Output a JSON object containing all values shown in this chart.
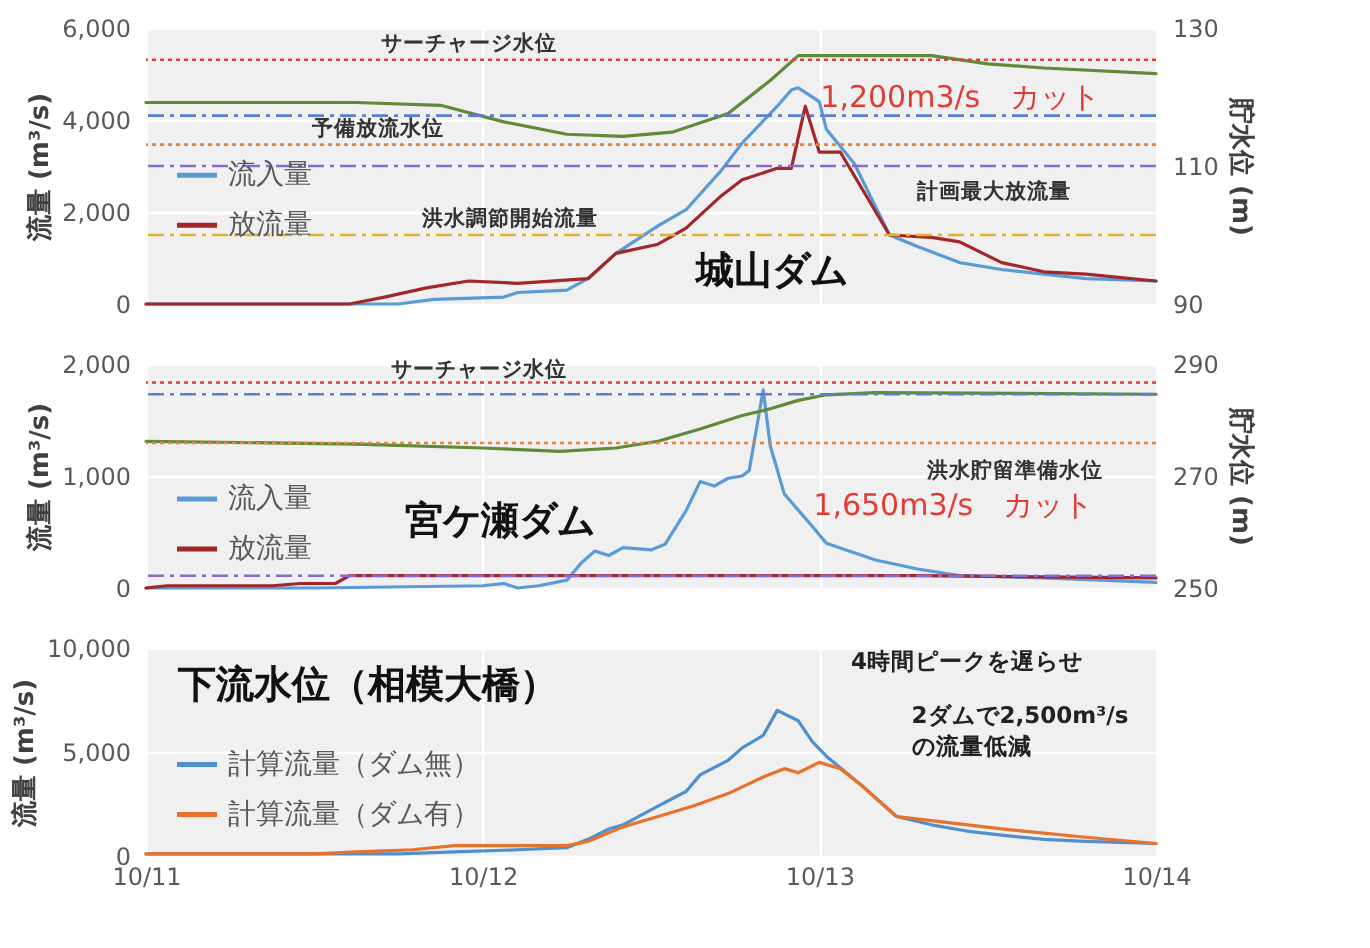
{
  "chart_data": [
    {
      "type": "line",
      "title": "城山ダム",
      "ylabel": "流量 (m³/s)",
      "y2label": "貯水位 (m)",
      "xlim": [
        "--10-11",
        "--10-14"
      ],
      "xticks": [
        {
          "value": "--10-11",
          "label": "10/11"
        },
        {
          "value": "--10-12",
          "label": "10/12"
        },
        {
          "value": "--10-13",
          "label": "10/13"
        },
        {
          "value": "--10-14",
          "label": "10/14"
        }
      ],
      "ylim": [
        0,
        6000
      ],
      "yticks": [
        {
          "value": 0,
          "label": "0"
        },
        {
          "value": 2000,
          "label": "2,000"
        },
        {
          "value": 4000,
          "label": "4,000"
        },
        {
          "value": 6000,
          "label": "6,000"
        }
      ],
      "y2lim": [
        90,
        130
      ],
      "y2ticks": [
        90,
        110,
        130
      ],
      "grid": true,
      "legend": "left",
      "tick_labels": "y",
      "series": [
        {
          "name": "流入量",
          "color": "#5b9bd5",
          "x": [
            "--10-11T00:00",
            "--10-11T18:00",
            "--10-11T20:30",
            "--10-12T01:30",
            "--10-12T02:30",
            "--10-12T06:00",
            "--10-12T07:30",
            "--10-12T09:30",
            "--10-12T12:30",
            "--10-12T14:30",
            "--10-12T17:00",
            "--10-12T18:30",
            "--10-12T21:00",
            "--10-12T22:00",
            "--10-12T22:30",
            "--10-13T00:00",
            "--10-13T00:30",
            "--10-13T02:30",
            "--10-13T05:00",
            "--10-13T07:00",
            "--10-13T10:00",
            "--10-13T13:00",
            "--10-13T16:00",
            "--10-13T19:00",
            "--10-14T00:00"
          ],
          "values": [
            0,
            0,
            100,
            150,
            250,
            300,
            550,
            1100,
            1700,
            2050,
            2900,
            3500,
            4300,
            4650,
            4700,
            4400,
            3800,
            3050,
            1500,
            1250,
            900,
            750,
            650,
            550,
            500
          ]
        },
        {
          "name": "放流量",
          "color": "#a3262a",
          "x": [
            "--10-11T00:00",
            "--10-11T14:30",
            "--10-11T17:00",
            "--10-11T20:00",
            "--10-11T23:00",
            "--10-12T02:30",
            "--10-12T07:30",
            "--10-12T09:30",
            "--10-12T12:30",
            "--10-12T14:30",
            "--10-12T17:00",
            "--10-12T18:30",
            "--10-12T21:00",
            "--10-12T22:00",
            "--10-12T23:00",
            "--10-13T00:00",
            "--10-13T01:30",
            "--10-13T05:00",
            "--10-13T08:00",
            "--10-13T10:00",
            "--10-13T13:00",
            "--10-13T16:00",
            "--10-13T19:00",
            "--10-14T00:00"
          ],
          "values": [
            0,
            0,
            150,
            350,
            500,
            450,
            550,
            1100,
            1300,
            1650,
            2350,
            2700,
            2950,
            2950,
            4300,
            3300,
            3300,
            1500,
            1450,
            1350,
            900,
            700,
            650,
            500
          ]
        },
        {
          "color": "#5f8a3a",
          "axis": "y2",
          "x": [
            "--10-11T00:00",
            "--10-11T15:00",
            "--10-11T21:00",
            "--10-12T01:30",
            "--10-12T06:00",
            "--10-12T10:00",
            "--10-12T13:30",
            "--10-12T17:30",
            "--10-12T20:30",
            "--10-12T22:30",
            "--10-13T08:00",
            "--10-13T12:00",
            "--10-13T16:00",
            "--10-14T00:00"
          ],
          "values": [
            119.2,
            119.2,
            118.8,
            116.4,
            114.6,
            114.3,
            114.9,
            117.6,
            122.4,
            126,
            126,
            124.8,
            124.2,
            123.4
          ]
        }
      ],
      "ref_lines": [
        {
          "axis": "y2",
          "value": 125.4,
          "label": "サーチャージ水位",
          "color": "#e0403a",
          "line_style": "dotted"
        },
        {
          "axis": "y2",
          "value": 117.3,
          "label": null,
          "color": "#5b7fd0",
          "line_style": "dashed"
        },
        {
          "axis": "y2",
          "value": 113.1,
          "label": "予備放流水位",
          "color": "#e8833a",
          "line_style": "dotted"
        },
        {
          "axis": "y",
          "value": 3000,
          "label": "計画最大放流量",
          "color": "#8a6ad0",
          "line_style": "dashed"
        },
        {
          "axis": "y",
          "value": 1500,
          "label": "洪水調節開始流量",
          "color": "#e0b030",
          "line_style": "dashed"
        }
      ],
      "annotations": [
        {
          "text": "1,200m3/s　カット",
          "x": "--10-12T23:30",
          "y": 4100
        }
      ]
    },
    {
      "type": "line",
      "title": "宮ケ瀬ダム",
      "ylabel": "流量 (m³/s)",
      "y2label": "貯水位 (m)",
      "xlim": [
        "--10-11",
        "--10-14"
      ],
      "xticks": [
        {
          "value": "--10-11",
          "label": "10/11"
        },
        {
          "value": "--10-12",
          "label": "10/12"
        },
        {
          "value": "--10-13",
          "label": "10/13"
        },
        {
          "value": "--10-14",
          "label": "10/14"
        }
      ],
      "ylim": [
        0,
        2000
      ],
      "yticks": [
        {
          "value": 0,
          "label": "0"
        },
        {
          "value": 1000,
          "label": "1,000"
        },
        {
          "value": 2000,
          "label": "2,000"
        }
      ],
      "y2lim": [
        250,
        290
      ],
      "y2ticks": [
        250,
        270,
        290
      ],
      "grid": true,
      "legend": "bottom left",
      "tick_labels": "y",
      "series": [
        {
          "name": "流入量",
          "color": "#5b9bd5",
          "x": [
            "--10-11T00:00",
            "--10-11T12:00",
            "--10-12T00:00",
            "--10-12T01:30",
            "--10-12T02:30",
            "--10-12T04:00",
            "--10-12T06:00",
            "--10-12T07:00",
            "--10-12T08:00",
            "--10-12T09:00",
            "--10-12T10:00",
            "--10-12T12:00",
            "--10-12T13:00",
            "--10-12T14:30",
            "--10-12T15:30",
            "--10-12T16:30",
            "--10-12T17:30",
            "--10-12T18:30",
            "--10-12T19:00",
            "--10-12T20:00",
            "--10-12T20:30",
            "--10-12T21:30",
            "--10-12T23:30",
            "--10-13T00:30",
            "--10-13T04:00",
            "--10-13T07:00",
            "--10-13T10:00",
            "--10-13T16:00",
            "--10-14T00:00"
          ],
          "values": [
            0,
            0,
            20,
            40,
            0,
            20,
            70,
            220,
            330,
            290,
            360,
            340,
            390,
            690,
            950,
            910,
            980,
            1000,
            1050,
            1770,
            1270,
            840,
            550,
            400,
            250,
            170,
            110,
            90,
            50
          ]
        },
        {
          "name": "放流量",
          "color": "#a3262a",
          "x": [
            "--10-11T00:00",
            "--10-11T01:30",
            "--10-11T09:00",
            "--10-11T11:00",
            "--10-11T13:30",
            "--10-11T14:30",
            "--10-13T07:00",
            "--10-14T00:00"
          ],
          "values": [
            0,
            20,
            20,
            40,
            40,
            110,
            110,
            90
          ]
        },
        {
          "color": "#5f8a3a",
          "axis": "y2",
          "x": [
            "--10-11T00:00",
            "--10-11T15:00",
            "--10-12T00:00",
            "--10-12T05:30",
            "--10-12T09:30",
            "--10-12T12:30",
            "--10-12T15:30",
            "--10-12T18:30",
            "--10-12T20:30",
            "--10-12T22:30",
            "--10-13T00:30",
            "--10-13T04:00",
            "--10-14T00:00"
          ],
          "values": [
            276.2,
            275.7,
            275.0,
            274.4,
            275.0,
            276.2,
            278.4,
            280.8,
            282.0,
            283.5,
            284.5,
            284.9,
            284.6
          ]
        }
      ],
      "ref_lines": [
        {
          "axis": "y2",
          "value": 286.7,
          "label": "サーチャージ水位",
          "color": "#e0403a",
          "line_style": "dotted"
        },
        {
          "axis": "y2",
          "value": 284.6,
          "label": null,
          "color": "#5b7fd0",
          "line_style": "dashed"
        },
        {
          "axis": "y2",
          "value": 275.9,
          "label": "洪水貯留準備水位",
          "color": "#e8833a",
          "line_style": "dotted"
        },
        {
          "axis": "y2",
          "value": 252.2,
          "label": null,
          "color": "#8a6ad0",
          "line_style": "dashed"
        }
      ],
      "annotations": [
        {
          "text": "1,650m3/s　カット",
          "x": "--10-12T23:00",
          "y": 740
        }
      ]
    },
    {
      "type": "line",
      "title": "下流水位（相模大橋）",
      "ylabel": "流量 (m³/s)",
      "xlim": [
        "--10-11",
        "--10-14"
      ],
      "xticks": [
        {
          "value": "--10-11",
          "label": "10/11"
        },
        {
          "value": "--10-12",
          "label": "10/12"
        },
        {
          "value": "--10-13",
          "label": "10/13"
        },
        {
          "value": "--10-14",
          "label": "10/14"
        }
      ],
      "ylim": [
        0,
        10000
      ],
      "yticks": [
        {
          "value": 0,
          "label": "0"
        },
        {
          "value": 5000,
          "label": "5,000"
        },
        {
          "value": 10000,
          "label": "10,000"
        }
      ],
      "grid": true,
      "legend": "left",
      "series": [
        {
          "name": "計算流量（ダム無）",
          "color": "#4f8fcc",
          "x": [
            "--10-11T00:00",
            "--10-11T18:00",
            "--10-11T22:00",
            "--10-12T02:30",
            "--10-12T06:00",
            "--10-12T07:30",
            "--10-12T09:00",
            "--10-12T10:00",
            "--10-12T12:30",
            "--10-12T14:30",
            "--10-12T15:30",
            "--10-12T17:30",
            "--10-12T18:30",
            "--10-12T20:00",
            "--10-12T21:00",
            "--10-12T22:30",
            "--10-12T23:30",
            "--10-13T00:30",
            "--10-13T03:00",
            "--10-13T05:30",
            "--10-13T08:00",
            "--10-13T10:30",
            "--10-13T13:00",
            "--10-13T16:00",
            "--10-13T19:00",
            "--10-14T00:00"
          ],
          "values": [
            100,
            100,
            200,
            300,
            400,
            800,
            1300,
            1500,
            2400,
            3100,
            3900,
            4600,
            5200,
            5800,
            7000,
            6500,
            5500,
            4800,
            3400,
            1900,
            1500,
            1200,
            1000,
            800,
            700,
            600
          ]
        },
        {
          "name": "計算流量（ダム有）",
          "color": "#e8712c",
          "x": [
            "--10-11T00:00",
            "--10-11T12:00",
            "--10-11T15:00",
            "--10-11T19:00",
            "--10-11T22:00",
            "--10-12T00:00",
            "--10-12T06:00",
            "--10-12T07:30",
            "--10-12T10:00",
            "--10-12T12:30",
            "--10-12T15:00",
            "--10-12T17:30",
            "--10-12T20:00",
            "--10-12T21:30",
            "--10-12T22:30",
            "--10-13T00:00",
            "--10-13T01:30",
            "--10-13T03:00",
            "--10-13T05:30",
            "--10-13T08:00",
            "--10-13T13:00",
            "--10-13T19:00",
            "--10-14T00:00"
          ],
          "values": [
            100,
            100,
            200,
            300,
            500,
            500,
            500,
            700,
            1400,
            1900,
            2400,
            3000,
            3800,
            4200,
            4000,
            4500,
            4200,
            3400,
            1900,
            1700,
            1300,
            900,
            600
          ]
        }
      ],
      "annotations": [
        "4時間ピークを遅らせ",
        "2ダムで2,500m³/s\nの流量低減"
      ]
    }
  ]
}
